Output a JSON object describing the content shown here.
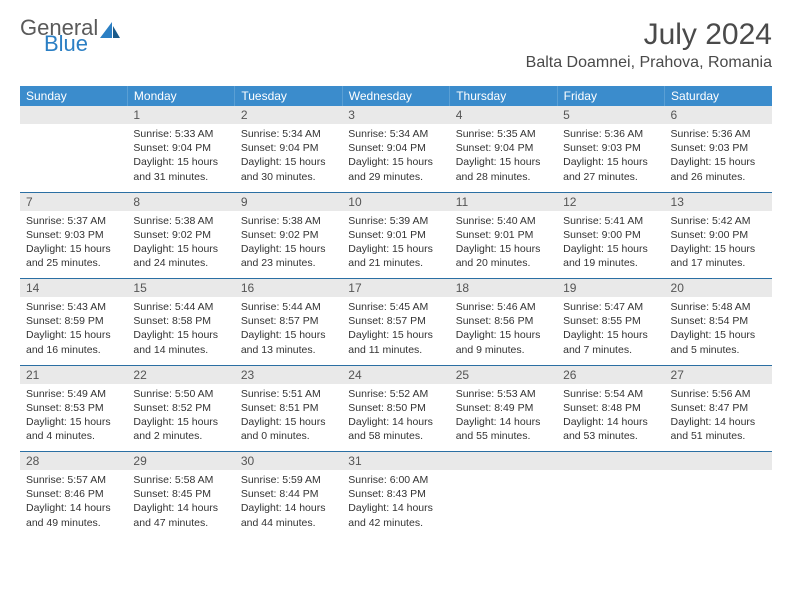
{
  "logo": {
    "general": "General",
    "blue": "Blue"
  },
  "title": "July 2024",
  "location": "Balta Doamnei, Prahova, Romania",
  "colors": {
    "header_bg": "#3b8ccc",
    "header_text": "#ffffff",
    "daynum_bg": "#e9e9e9",
    "divider": "#2b6fa3",
    "logo_gray": "#5a5a5a",
    "logo_blue": "#2b7fc4"
  },
  "days_of_week": [
    "Sunday",
    "Monday",
    "Tuesday",
    "Wednesday",
    "Thursday",
    "Friday",
    "Saturday"
  ],
  "weeks": [
    {
      "nums": [
        "",
        "1",
        "2",
        "3",
        "4",
        "5",
        "6"
      ],
      "cells": [
        null,
        {
          "sr": "Sunrise: 5:33 AM",
          "ss": "Sunset: 9:04 PM",
          "d1": "Daylight: 15 hours",
          "d2": "and 31 minutes."
        },
        {
          "sr": "Sunrise: 5:34 AM",
          "ss": "Sunset: 9:04 PM",
          "d1": "Daylight: 15 hours",
          "d2": "and 30 minutes."
        },
        {
          "sr": "Sunrise: 5:34 AM",
          "ss": "Sunset: 9:04 PM",
          "d1": "Daylight: 15 hours",
          "d2": "and 29 minutes."
        },
        {
          "sr": "Sunrise: 5:35 AM",
          "ss": "Sunset: 9:04 PM",
          "d1": "Daylight: 15 hours",
          "d2": "and 28 minutes."
        },
        {
          "sr": "Sunrise: 5:36 AM",
          "ss": "Sunset: 9:03 PM",
          "d1": "Daylight: 15 hours",
          "d2": "and 27 minutes."
        },
        {
          "sr": "Sunrise: 5:36 AM",
          "ss": "Sunset: 9:03 PM",
          "d1": "Daylight: 15 hours",
          "d2": "and 26 minutes."
        }
      ]
    },
    {
      "nums": [
        "7",
        "8",
        "9",
        "10",
        "11",
        "12",
        "13"
      ],
      "cells": [
        {
          "sr": "Sunrise: 5:37 AM",
          "ss": "Sunset: 9:03 PM",
          "d1": "Daylight: 15 hours",
          "d2": "and 25 minutes."
        },
        {
          "sr": "Sunrise: 5:38 AM",
          "ss": "Sunset: 9:02 PM",
          "d1": "Daylight: 15 hours",
          "d2": "and 24 minutes."
        },
        {
          "sr": "Sunrise: 5:38 AM",
          "ss": "Sunset: 9:02 PM",
          "d1": "Daylight: 15 hours",
          "d2": "and 23 minutes."
        },
        {
          "sr": "Sunrise: 5:39 AM",
          "ss": "Sunset: 9:01 PM",
          "d1": "Daylight: 15 hours",
          "d2": "and 21 minutes."
        },
        {
          "sr": "Sunrise: 5:40 AM",
          "ss": "Sunset: 9:01 PM",
          "d1": "Daylight: 15 hours",
          "d2": "and 20 minutes."
        },
        {
          "sr": "Sunrise: 5:41 AM",
          "ss": "Sunset: 9:00 PM",
          "d1": "Daylight: 15 hours",
          "d2": "and 19 minutes."
        },
        {
          "sr": "Sunrise: 5:42 AM",
          "ss": "Sunset: 9:00 PM",
          "d1": "Daylight: 15 hours",
          "d2": "and 17 minutes."
        }
      ]
    },
    {
      "nums": [
        "14",
        "15",
        "16",
        "17",
        "18",
        "19",
        "20"
      ],
      "cells": [
        {
          "sr": "Sunrise: 5:43 AM",
          "ss": "Sunset: 8:59 PM",
          "d1": "Daylight: 15 hours",
          "d2": "and 16 minutes."
        },
        {
          "sr": "Sunrise: 5:44 AM",
          "ss": "Sunset: 8:58 PM",
          "d1": "Daylight: 15 hours",
          "d2": "and 14 minutes."
        },
        {
          "sr": "Sunrise: 5:44 AM",
          "ss": "Sunset: 8:57 PM",
          "d1": "Daylight: 15 hours",
          "d2": "and 13 minutes."
        },
        {
          "sr": "Sunrise: 5:45 AM",
          "ss": "Sunset: 8:57 PM",
          "d1": "Daylight: 15 hours",
          "d2": "and 11 minutes."
        },
        {
          "sr": "Sunrise: 5:46 AM",
          "ss": "Sunset: 8:56 PM",
          "d1": "Daylight: 15 hours",
          "d2": "and 9 minutes."
        },
        {
          "sr": "Sunrise: 5:47 AM",
          "ss": "Sunset: 8:55 PM",
          "d1": "Daylight: 15 hours",
          "d2": "and 7 minutes."
        },
        {
          "sr": "Sunrise: 5:48 AM",
          "ss": "Sunset: 8:54 PM",
          "d1": "Daylight: 15 hours",
          "d2": "and 5 minutes."
        }
      ]
    },
    {
      "nums": [
        "21",
        "22",
        "23",
        "24",
        "25",
        "26",
        "27"
      ],
      "cells": [
        {
          "sr": "Sunrise: 5:49 AM",
          "ss": "Sunset: 8:53 PM",
          "d1": "Daylight: 15 hours",
          "d2": "and 4 minutes."
        },
        {
          "sr": "Sunrise: 5:50 AM",
          "ss": "Sunset: 8:52 PM",
          "d1": "Daylight: 15 hours",
          "d2": "and 2 minutes."
        },
        {
          "sr": "Sunrise: 5:51 AM",
          "ss": "Sunset: 8:51 PM",
          "d1": "Daylight: 15 hours",
          "d2": "and 0 minutes."
        },
        {
          "sr": "Sunrise: 5:52 AM",
          "ss": "Sunset: 8:50 PM",
          "d1": "Daylight: 14 hours",
          "d2": "and 58 minutes."
        },
        {
          "sr": "Sunrise: 5:53 AM",
          "ss": "Sunset: 8:49 PM",
          "d1": "Daylight: 14 hours",
          "d2": "and 55 minutes."
        },
        {
          "sr": "Sunrise: 5:54 AM",
          "ss": "Sunset: 8:48 PM",
          "d1": "Daylight: 14 hours",
          "d2": "and 53 minutes."
        },
        {
          "sr": "Sunrise: 5:56 AM",
          "ss": "Sunset: 8:47 PM",
          "d1": "Daylight: 14 hours",
          "d2": "and 51 minutes."
        }
      ]
    },
    {
      "nums": [
        "28",
        "29",
        "30",
        "31",
        "",
        "",
        ""
      ],
      "cells": [
        {
          "sr": "Sunrise: 5:57 AM",
          "ss": "Sunset: 8:46 PM",
          "d1": "Daylight: 14 hours",
          "d2": "and 49 minutes."
        },
        {
          "sr": "Sunrise: 5:58 AM",
          "ss": "Sunset: 8:45 PM",
          "d1": "Daylight: 14 hours",
          "d2": "and 47 minutes."
        },
        {
          "sr": "Sunrise: 5:59 AM",
          "ss": "Sunset: 8:44 PM",
          "d1": "Daylight: 14 hours",
          "d2": "and 44 minutes."
        },
        {
          "sr": "Sunrise: 6:00 AM",
          "ss": "Sunset: 8:43 PM",
          "d1": "Daylight: 14 hours",
          "d2": "and 42 minutes."
        },
        null,
        null,
        null
      ]
    }
  ]
}
